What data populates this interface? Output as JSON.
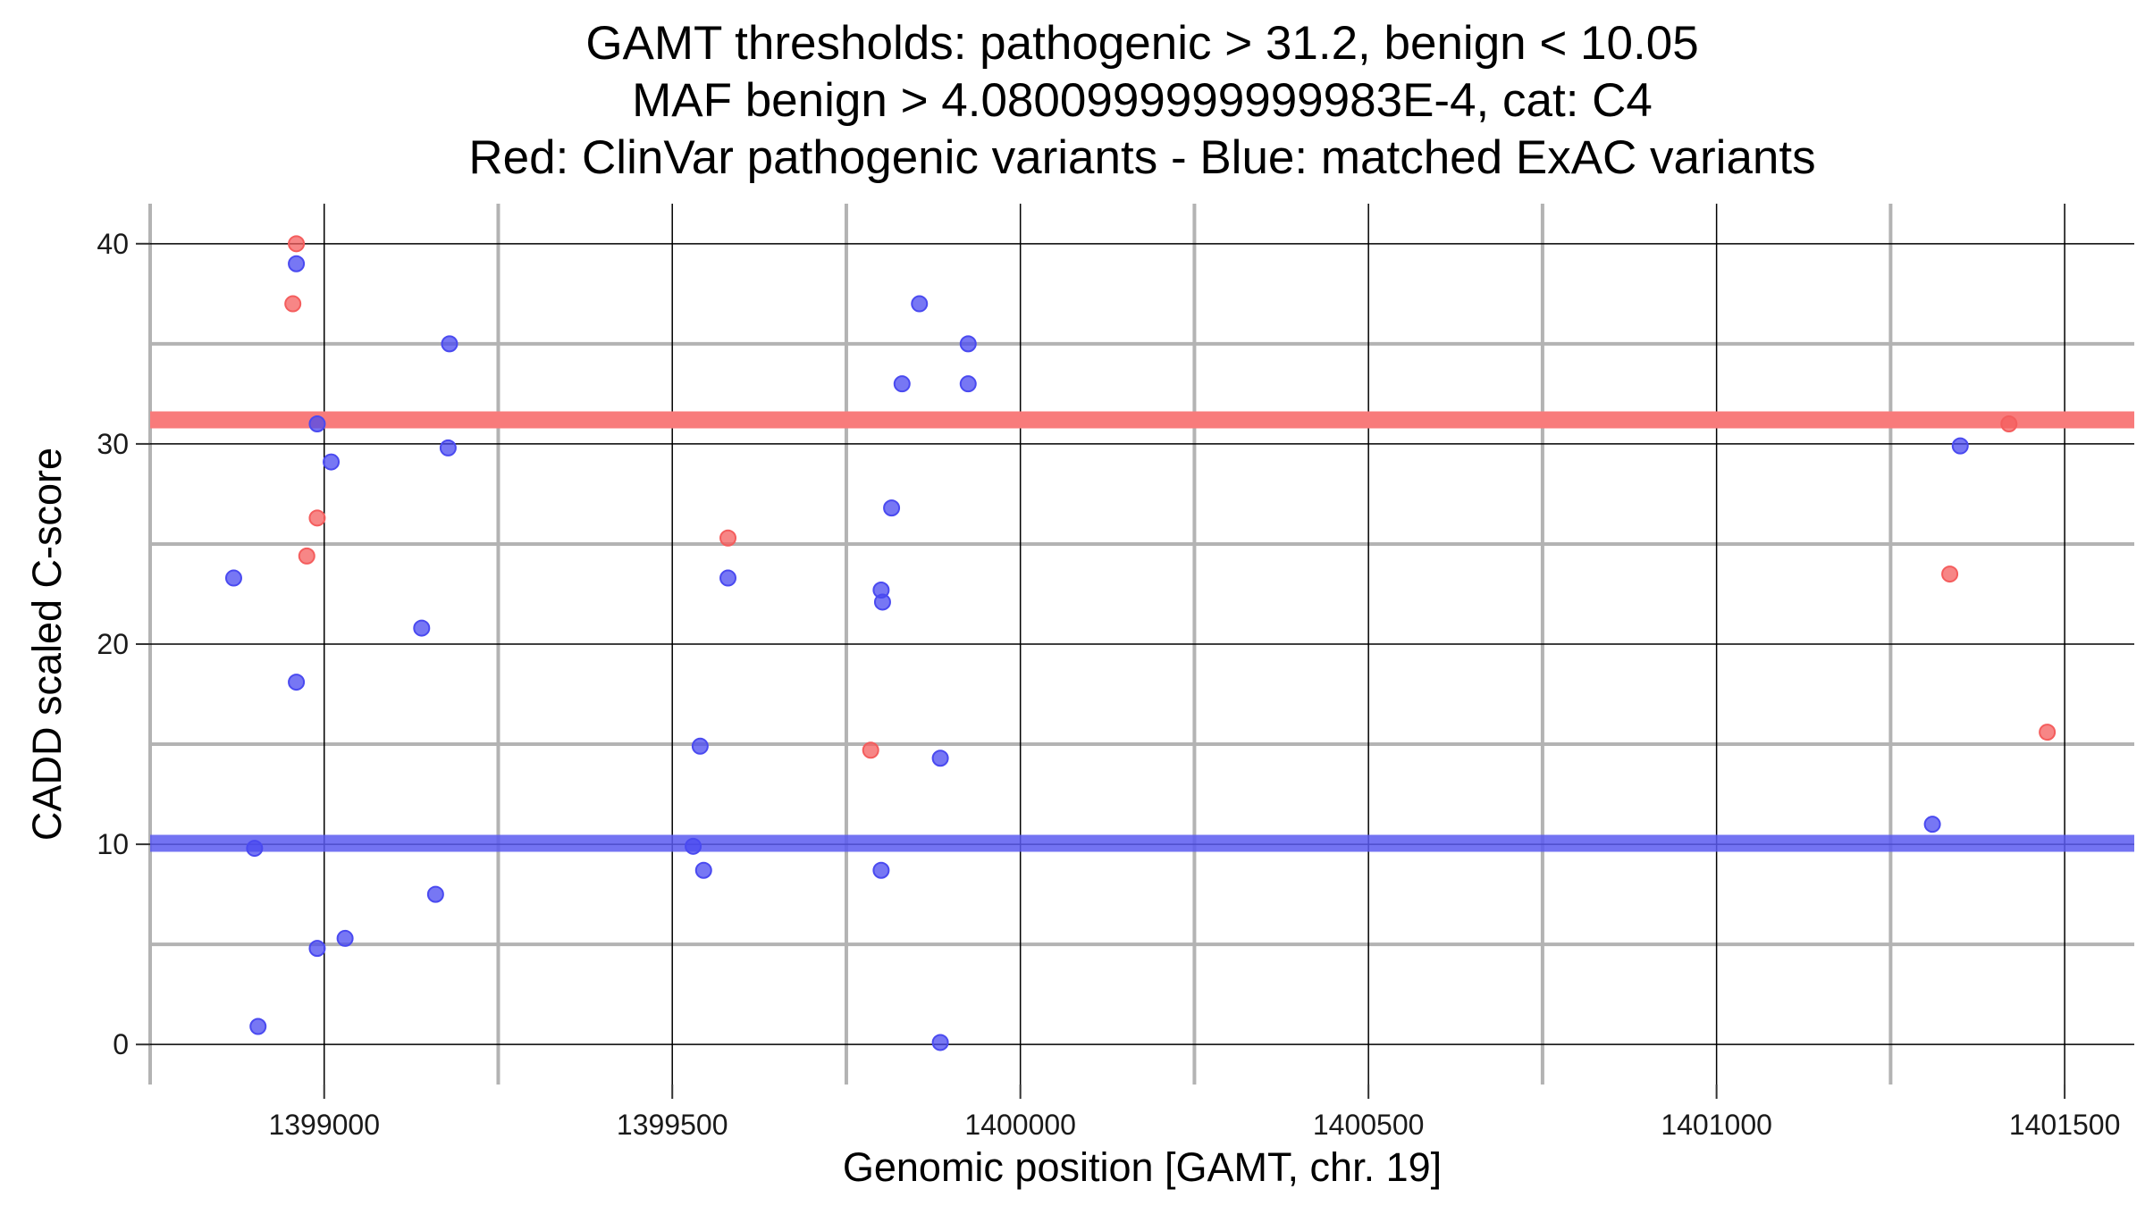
{
  "chart_data": {
    "type": "scatter",
    "title_lines": [
      "GAMT thresholds: pathogenic > 31.2, benign < 10.05",
      "MAF benign > 4.0800999999999983E-4, cat: C4",
      "Red: ClinVar pathogenic variants - Blue: matched ExAC variants"
    ],
    "xlabel": "Genomic position [GAMT, chr. 19]",
    "ylabel": "CADD scaled C-score",
    "xlim": [
      1398750,
      1401600
    ],
    "ylim": [
      -2,
      42
    ],
    "x_major_ticks": [
      1399000,
      1399500,
      1400000,
      1400500,
      1401000,
      1401500
    ],
    "x_minor_gridlines": [
      1398750,
      1399250,
      1399750,
      1400250,
      1400750,
      1401250
    ],
    "y_major_ticks": [
      0,
      10,
      20,
      30,
      40
    ],
    "y_minor_gridlines": [
      5,
      15,
      25,
      35
    ],
    "grid": true,
    "colors": {
      "pathogenic": "#f45d5d",
      "benign": "#4a4af0",
      "pathogenic_line": "#f87b7b",
      "benign_line": "#5b5bf0"
    },
    "thresholds": {
      "pathogenic": 31.2,
      "benign": 10.05
    },
    "series": [
      {
        "color_key": "pathogenic",
        "points": [
          {
            "x": 1398960,
            "y": 40.0
          },
          {
            "x": 1398955,
            "y": 37.0
          },
          {
            "x": 1398990,
            "y": 26.3
          },
          {
            "x": 1398975,
            "y": 24.4
          },
          {
            "x": 1399580,
            "y": 25.3
          },
          {
            "x": 1399785,
            "y": 14.7
          },
          {
            "x": 1401420,
            "y": 31.0
          },
          {
            "x": 1401335,
            "y": 23.5
          },
          {
            "x": 1401475,
            "y": 15.6
          }
        ]
      },
      {
        "color_key": "benign",
        "points": [
          {
            "x": 1398960,
            "y": 39.0
          },
          {
            "x": 1399180,
            "y": 35.0
          },
          {
            "x": 1398990,
            "y": 31.0
          },
          {
            "x": 1399178,
            "y": 29.8
          },
          {
            "x": 1399010,
            "y": 29.1
          },
          {
            "x": 1398870,
            "y": 23.3
          },
          {
            "x": 1399140,
            "y": 20.8
          },
          {
            "x": 1398960,
            "y": 18.1
          },
          {
            "x": 1398900,
            "y": 9.8
          },
          {
            "x": 1399160,
            "y": 7.5
          },
          {
            "x": 1399030,
            "y": 5.3
          },
          {
            "x": 1398990,
            "y": 4.8
          },
          {
            "x": 1398905,
            "y": 0.9
          },
          {
            "x": 1399855,
            "y": 37.0
          },
          {
            "x": 1399925,
            "y": 35.0
          },
          {
            "x": 1399830,
            "y": 33.0
          },
          {
            "x": 1399925,
            "y": 33.0
          },
          {
            "x": 1399815,
            "y": 26.8
          },
          {
            "x": 1399580,
            "y": 23.3
          },
          {
            "x": 1399800,
            "y": 22.7
          },
          {
            "x": 1399802,
            "y": 22.1
          },
          {
            "x": 1399540,
            "y": 14.9
          },
          {
            "x": 1399885,
            "y": 14.3
          },
          {
            "x": 1399530,
            "y": 9.9
          },
          {
            "x": 1399545,
            "y": 8.7
          },
          {
            "x": 1399800,
            "y": 8.7
          },
          {
            "x": 1399885,
            "y": 0.1
          },
          {
            "x": 1401350,
            "y": 29.9
          },
          {
            "x": 1401310,
            "y": 11.0
          }
        ]
      }
    ]
  }
}
